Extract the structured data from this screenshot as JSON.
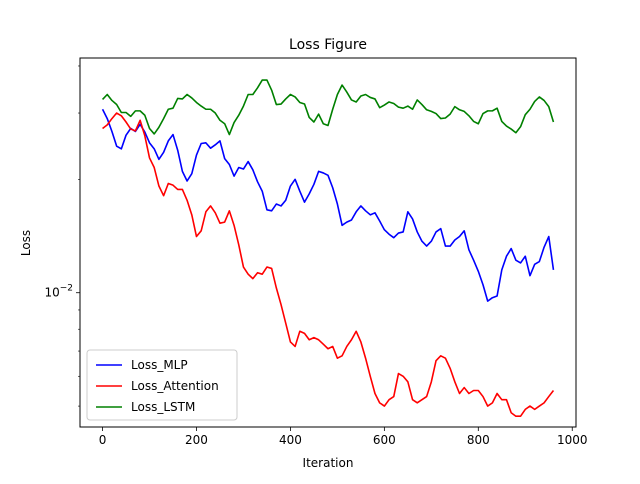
{
  "chart_data": {
    "type": "line",
    "title": "Loss Figure",
    "xlabel": "Iteration",
    "ylabel": "Loss",
    "x_scale": "linear",
    "y_scale": "log",
    "xlim": [
      -48,
      1008
    ],
    "ylim": [
      0.0044,
      0.042
    ],
    "x_ticks": [
      0,
      200,
      400,
      600,
      800,
      1000
    ],
    "x_tick_labels": [
      "0",
      "200",
      "400",
      "600",
      "800",
      "1000"
    ],
    "y_major_ticks": [
      0.01
    ],
    "y_major_tick_labels": [
      "10^-2"
    ],
    "y_minor_ticks": [
      0.005,
      0.006,
      0.007,
      0.008,
      0.009,
      0.02,
      0.03,
      0.04
    ],
    "grid": false,
    "legend": {
      "position": "lower-left"
    },
    "series": [
      {
        "name": "Loss_MLP",
        "color": "#0000ff",
        "points": [
          [
            0,
            0.0307
          ],
          [
            10,
            0.029
          ],
          [
            20,
            0.0268
          ],
          [
            30,
            0.0245
          ],
          [
            40,
            0.0241
          ],
          [
            50,
            0.0262
          ],
          [
            60,
            0.0273
          ],
          [
            70,
            0.0268
          ],
          [
            80,
            0.028
          ],
          [
            90,
            0.0267
          ],
          [
            100,
            0.025
          ],
          [
            110,
            0.0241
          ],
          [
            120,
            0.0226
          ],
          [
            130,
            0.0236
          ],
          [
            140,
            0.0253
          ],
          [
            150,
            0.0263
          ],
          [
            160,
            0.0239
          ],
          [
            170,
            0.021
          ],
          [
            180,
            0.0198
          ],
          [
            190,
            0.0207
          ],
          [
            200,
            0.0232
          ],
          [
            210,
            0.0249
          ],
          [
            220,
            0.025
          ],
          [
            230,
            0.0242
          ],
          [
            240,
            0.0247
          ],
          [
            250,
            0.0253
          ],
          [
            260,
            0.0227
          ],
          [
            270,
            0.0219
          ],
          [
            280,
            0.0204
          ],
          [
            290,
            0.0215
          ],
          [
            300,
            0.0213
          ],
          [
            310,
            0.0223
          ],
          [
            320,
            0.0212
          ],
          [
            330,
            0.0197
          ],
          [
            340,
            0.0186
          ],
          [
            350,
            0.0166
          ],
          [
            360,
            0.0165
          ],
          [
            370,
            0.0172
          ],
          [
            380,
            0.017
          ],
          [
            390,
            0.0176
          ],
          [
            400,
            0.0192
          ],
          [
            410,
            0.02
          ],
          [
            420,
            0.0186
          ],
          [
            430,
            0.0174
          ],
          [
            440,
            0.0183
          ],
          [
            450,
            0.0194
          ],
          [
            460,
            0.021
          ],
          [
            470,
            0.0208
          ],
          [
            480,
            0.0205
          ],
          [
            490,
            0.019
          ],
          [
            500,
            0.0172
          ],
          [
            510,
            0.0151
          ],
          [
            520,
            0.0154
          ],
          [
            530,
            0.0156
          ],
          [
            540,
            0.0164
          ],
          [
            550,
            0.017
          ],
          [
            560,
            0.0165
          ],
          [
            570,
            0.0161
          ],
          [
            580,
            0.0163
          ],
          [
            590,
            0.0155
          ],
          [
            600,
            0.0147
          ],
          [
            610,
            0.0143
          ],
          [
            620,
            0.014
          ],
          [
            630,
            0.0144
          ],
          [
            640,
            0.0145
          ],
          [
            650,
            0.0164
          ],
          [
            660,
            0.0157
          ],
          [
            670,
            0.0145
          ],
          [
            680,
            0.0137
          ],
          [
            690,
            0.0133
          ],
          [
            700,
            0.0137
          ],
          [
            710,
            0.0145
          ],
          [
            720,
            0.0148
          ],
          [
            730,
            0.0133
          ],
          [
            740,
            0.0133
          ],
          [
            750,
            0.0138
          ],
          [
            760,
            0.0141
          ],
          [
            770,
            0.0146
          ],
          [
            780,
            0.013
          ],
          [
            790,
            0.0122
          ],
          [
            800,
            0.0114
          ],
          [
            810,
            0.0105
          ],
          [
            820,
            0.0095
          ],
          [
            830,
            0.0097
          ],
          [
            840,
            0.0098
          ],
          [
            850,
            0.0115
          ],
          [
            860,
            0.0125
          ],
          [
            870,
            0.0131
          ],
          [
            880,
            0.0122
          ],
          [
            890,
            0.012
          ],
          [
            900,
            0.0125
          ],
          [
            910,
            0.0111
          ],
          [
            920,
            0.0119
          ],
          [
            930,
            0.0121
          ],
          [
            940,
            0.0132
          ],
          [
            950,
            0.0141
          ],
          [
            960,
            0.0115
          ]
        ]
      },
      {
        "name": "Loss_Attention",
        "color": "#ff0000",
        "points": [
          [
            0,
            0.0273
          ],
          [
            10,
            0.0279
          ],
          [
            20,
            0.029
          ],
          [
            30,
            0.03
          ],
          [
            40,
            0.0295
          ],
          [
            50,
            0.0284
          ],
          [
            60,
            0.0272
          ],
          [
            70,
            0.0269
          ],
          [
            80,
            0.0287
          ],
          [
            90,
            0.0261
          ],
          [
            100,
            0.0228
          ],
          [
            110,
            0.0215
          ],
          [
            120,
            0.0192
          ],
          [
            130,
            0.0181
          ],
          [
            140,
            0.0195
          ],
          [
            150,
            0.0193
          ],
          [
            160,
            0.0188
          ],
          [
            170,
            0.0188
          ],
          [
            180,
            0.0176
          ],
          [
            190,
            0.0161
          ],
          [
            200,
            0.0141
          ],
          [
            210,
            0.0146
          ],
          [
            220,
            0.0164
          ],
          [
            230,
            0.017
          ],
          [
            240,
            0.0163
          ],
          [
            250,
            0.0153
          ],
          [
            260,
            0.0154
          ],
          [
            270,
            0.0165
          ],
          [
            280,
            0.0151
          ],
          [
            290,
            0.0134
          ],
          [
            300,
            0.0117
          ],
          [
            310,
            0.0112
          ],
          [
            320,
            0.0109
          ],
          [
            330,
            0.0113
          ],
          [
            340,
            0.0112
          ],
          [
            350,
            0.0117
          ],
          [
            360,
            0.0116
          ],
          [
            370,
            0.0103
          ],
          [
            380,
            0.0093
          ],
          [
            390,
            0.0083
          ],
          [
            400,
            0.0074
          ],
          [
            410,
            0.0072
          ],
          [
            420,
            0.0079
          ],
          [
            430,
            0.0078
          ],
          [
            440,
            0.0075
          ],
          [
            450,
            0.0076
          ],
          [
            460,
            0.0075
          ],
          [
            470,
            0.0073
          ],
          [
            480,
            0.0071
          ],
          [
            490,
            0.0072
          ],
          [
            500,
            0.0067
          ],
          [
            510,
            0.0068
          ],
          [
            520,
            0.0072
          ],
          [
            530,
            0.0075
          ],
          [
            540,
            0.0079
          ],
          [
            550,
            0.0074
          ],
          [
            560,
            0.0067
          ],
          [
            570,
            0.006
          ],
          [
            580,
            0.0054
          ],
          [
            590,
            0.0051
          ],
          [
            600,
            0.005
          ],
          [
            610,
            0.0052
          ],
          [
            620,
            0.0053
          ],
          [
            630,
            0.0061
          ],
          [
            640,
            0.006
          ],
          [
            650,
            0.0058
          ],
          [
            660,
            0.0052
          ],
          [
            670,
            0.0051
          ],
          [
            680,
            0.0052
          ],
          [
            690,
            0.0053
          ],
          [
            700,
            0.0058
          ],
          [
            710,
            0.0066
          ],
          [
            720,
            0.0068
          ],
          [
            730,
            0.0067
          ],
          [
            740,
            0.0063
          ],
          [
            750,
            0.0058
          ],
          [
            760,
            0.0054
          ],
          [
            770,
            0.0056
          ],
          [
            780,
            0.0054
          ],
          [
            790,
            0.0055
          ],
          [
            800,
            0.0055
          ],
          [
            810,
            0.0053
          ],
          [
            820,
            0.005
          ],
          [
            830,
            0.0051
          ],
          [
            840,
            0.0054
          ],
          [
            850,
            0.0052
          ],
          [
            860,
            0.0052
          ],
          [
            870,
            0.0048
          ],
          [
            880,
            0.0047
          ],
          [
            890,
            0.0047
          ],
          [
            900,
            0.0049
          ],
          [
            910,
            0.005
          ],
          [
            920,
            0.0049
          ],
          [
            930,
            0.005
          ],
          [
            940,
            0.0051
          ],
          [
            950,
            0.0053
          ],
          [
            960,
            0.0055
          ]
        ]
      },
      {
        "name": "Loss_LSTM",
        "color": "#008000",
        "points": [
          [
            0,
            0.0326
          ],
          [
            10,
            0.0336
          ],
          [
            20,
            0.0324
          ],
          [
            30,
            0.0316
          ],
          [
            40,
            0.0301
          ],
          [
            50,
            0.0301
          ],
          [
            60,
            0.0294
          ],
          [
            70,
            0.0304
          ],
          [
            80,
            0.0304
          ],
          [
            90,
            0.0296
          ],
          [
            100,
            0.0273
          ],
          [
            110,
            0.0264
          ],
          [
            120,
            0.0275
          ],
          [
            130,
            0.029
          ],
          [
            140,
            0.0307
          ],
          [
            150,
            0.0309
          ],
          [
            160,
            0.0328
          ],
          [
            170,
            0.0327
          ],
          [
            180,
            0.0336
          ],
          [
            190,
            0.0329
          ],
          [
            200,
            0.032
          ],
          [
            210,
            0.0313
          ],
          [
            220,
            0.0307
          ],
          [
            230,
            0.0307
          ],
          [
            240,
            0.03
          ],
          [
            250,
            0.0287
          ],
          [
            260,
            0.0281
          ],
          [
            270,
            0.0263
          ],
          [
            280,
            0.0283
          ],
          [
            290,
            0.0296
          ],
          [
            300,
            0.0313
          ],
          [
            310,
            0.0336
          ],
          [
            320,
            0.0336
          ],
          [
            330,
            0.035
          ],
          [
            340,
            0.0367
          ],
          [
            350,
            0.0367
          ],
          [
            360,
            0.0345
          ],
          [
            370,
            0.0316
          ],
          [
            380,
            0.0317
          ],
          [
            390,
            0.0327
          ],
          [
            400,
            0.0336
          ],
          [
            410,
            0.0331
          ],
          [
            420,
            0.032
          ],
          [
            430,
            0.0317
          ],
          [
            440,
            0.0292
          ],
          [
            450,
            0.0284
          ],
          [
            460,
            0.0298
          ],
          [
            470,
            0.0281
          ],
          [
            480,
            0.0278
          ],
          [
            490,
            0.0307
          ],
          [
            500,
            0.0336
          ],
          [
            510,
            0.0356
          ],
          [
            520,
            0.0341
          ],
          [
            530,
            0.0325
          ],
          [
            540,
            0.0321
          ],
          [
            550,
            0.0333
          ],
          [
            560,
            0.0336
          ],
          [
            570,
            0.033
          ],
          [
            580,
            0.0327
          ],
          [
            590,
            0.031
          ],
          [
            600,
            0.0315
          ],
          [
            610,
            0.0321
          ],
          [
            620,
            0.0318
          ],
          [
            630,
            0.0311
          ],
          [
            640,
            0.0309
          ],
          [
            650,
            0.0313
          ],
          [
            660,
            0.0307
          ],
          [
            670,
            0.0325
          ],
          [
            680,
            0.0316
          ],
          [
            690,
            0.0306
          ],
          [
            700,
            0.0303
          ],
          [
            710,
            0.0299
          ],
          [
            720,
            0.029
          ],
          [
            730,
            0.0291
          ],
          [
            740,
            0.0298
          ],
          [
            750,
            0.0312
          ],
          [
            760,
            0.0306
          ],
          [
            770,
            0.0303
          ],
          [
            780,
            0.0295
          ],
          [
            790,
            0.0285
          ],
          [
            800,
            0.0281
          ],
          [
            810,
            0.0299
          ],
          [
            820,
            0.0304
          ],
          [
            830,
            0.0304
          ],
          [
            840,
            0.0309
          ],
          [
            850,
            0.0285
          ],
          [
            860,
            0.0277
          ],
          [
            870,
            0.0272
          ],
          [
            880,
            0.0266
          ],
          [
            890,
            0.0276
          ],
          [
            900,
            0.0297
          ],
          [
            910,
            0.0307
          ],
          [
            920,
            0.0322
          ],
          [
            930,
            0.0331
          ],
          [
            940,
            0.0324
          ],
          [
            950,
            0.0312
          ],
          [
            960,
            0.0284
          ]
        ]
      }
    ]
  }
}
